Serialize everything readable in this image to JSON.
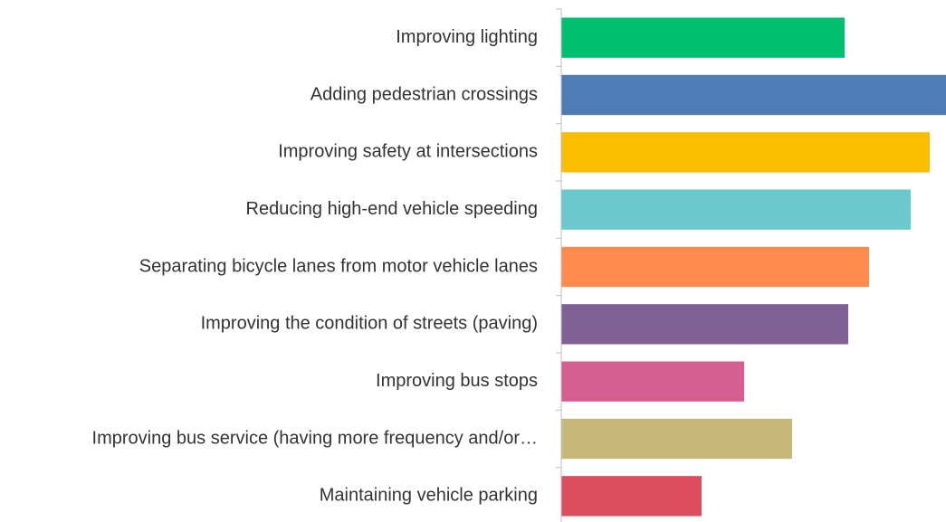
{
  "chart_data": {
    "type": "barh",
    "categories": [
      "Improving lighting",
      "Adding pedestrian crossings",
      "Improving safety at intersections",
      "Reducing high-end vehicle speeding",
      "Separating bicycle lanes from motor vehicle lanes",
      "Improving the condition of streets (paving)",
      "Improving bus stops",
      "Improving bus service (having more frequency and/or…",
      "Maintaining vehicle parking"
    ],
    "values": [
      313,
      425,
      407,
      386,
      340,
      317,
      202,
      255,
      155
    ],
    "colors": [
      "#00bf6f",
      "#507cb6",
      "#f9be00",
      "#6bc8cd",
      "#ff8b4f",
      "#7f6195",
      "#d65d90",
      "#c7b879",
      "#dc4e5e"
    ],
    "xlim": [
      0,
      425
    ]
  }
}
